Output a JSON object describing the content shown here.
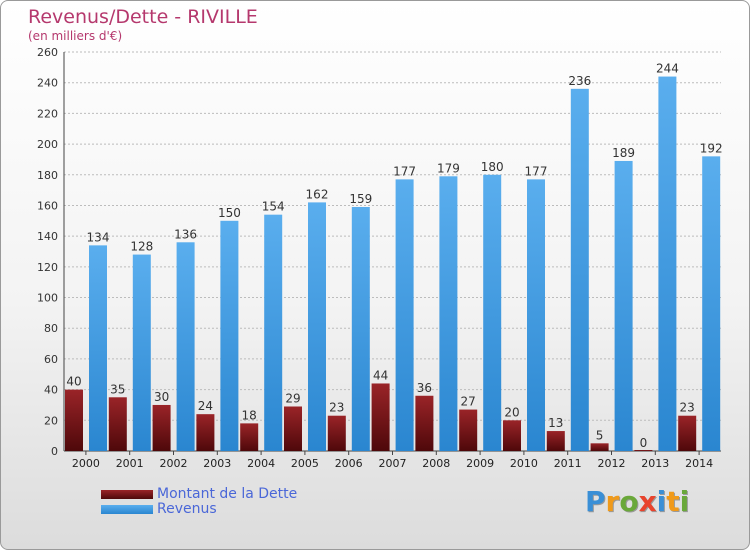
{
  "header": {
    "title": "Revenus/Dette - RIVILLE",
    "subtitle": "(en milliers d'€)"
  },
  "chart_data": {
    "type": "bar",
    "title": "Revenus/Dette - RIVILLE",
    "subtitle": "(en milliers d'€)",
    "categories": [
      "2000",
      "2001",
      "2002",
      "2003",
      "2004",
      "2005",
      "2006",
      "2007",
      "2008",
      "2009",
      "2010",
      "2011",
      "2012",
      "2013",
      "2014"
    ],
    "series": [
      {
        "name": "Montant de la Dette",
        "color": "#7a1416",
        "values": [
          40,
          35,
          30,
          24,
          18,
          29,
          23,
          44,
          36,
          27,
          20,
          13,
          5,
          0,
          23
        ]
      },
      {
        "name": "Revenus",
        "color": "#3d9ae3",
        "values": [
          134,
          128,
          136,
          150,
          154,
          162,
          159,
          177,
          179,
          180,
          177,
          236,
          189,
          244,
          192
        ]
      }
    ],
    "ylim": [
      0,
      260
    ],
    "yticks": [
      0,
      20,
      40,
      60,
      80,
      100,
      120,
      140,
      160,
      180,
      200,
      220,
      240,
      260
    ],
    "grid": true,
    "legend": "bottom-left"
  },
  "legend": {
    "items": [
      {
        "label": "Montant de la Dette",
        "color": "#7a1416"
      },
      {
        "label": "Revenus",
        "color": "#3d9ae3"
      }
    ]
  },
  "logo": {
    "text": "Proxiti"
  }
}
